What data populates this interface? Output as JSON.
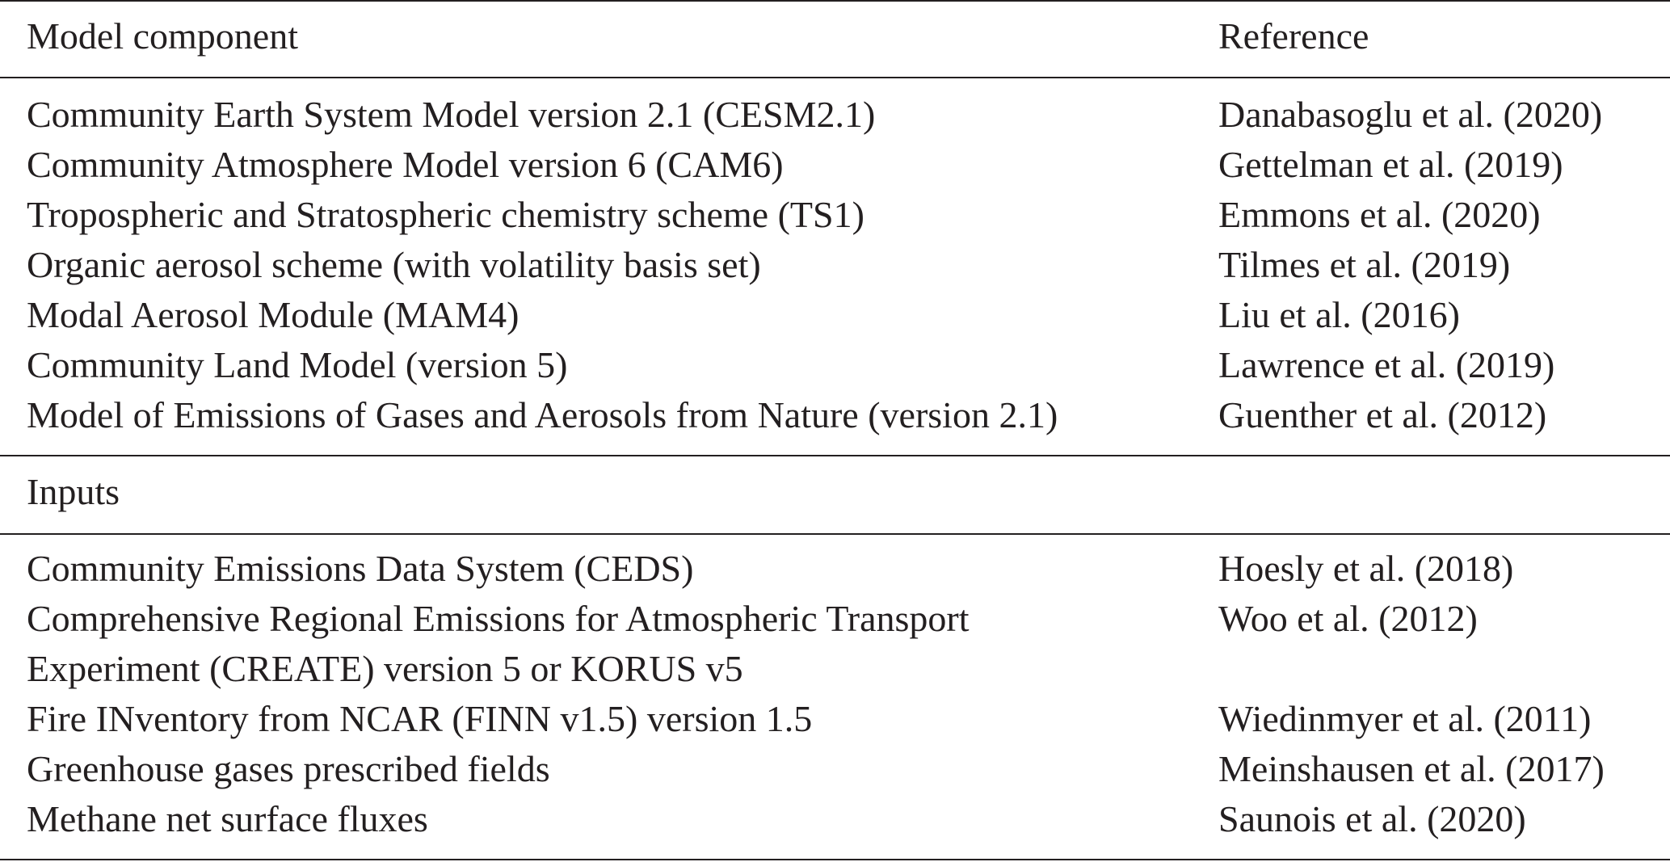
{
  "header": {
    "col1": "Model component",
    "col2": "Reference"
  },
  "model_components": [
    {
      "component": "Community Earth System Model version 2.1 (CESM2.1)",
      "reference": "Danabasoglu et al. (2020)"
    },
    {
      "component": "Community Atmosphere Model version 6 (CAM6)",
      "reference": "Gettelman et al. (2019)"
    },
    {
      "component": "Tropospheric and Stratospheric chemistry scheme (TS1)",
      "reference": "Emmons et al. (2020)"
    },
    {
      "component": "Organic aerosol scheme (with volatility basis set)",
      "reference": "Tilmes et al. (2019)"
    },
    {
      "component": "Modal Aerosol Module (MAM4)",
      "reference": "Liu et al. (2016)"
    },
    {
      "component": "Community Land Model (version 5)",
      "reference": "Lawrence et al. (2019)"
    },
    {
      "component": "Model of Emissions of Gases and Aerosols from Nature (version 2.1)",
      "reference": "Guenther et al. (2012)"
    }
  ],
  "inputs_header": "Inputs",
  "inputs": [
    {
      "component": "Community Emissions Data System (CEDS)",
      "reference": "Hoesly et al. (2018)"
    },
    {
      "component": "Comprehensive Regional Emissions for Atmospheric Transport",
      "reference": "Woo et al. (2012)"
    },
    {
      "component": "Experiment (CREATE) version 5 or KORUS v5",
      "reference": ""
    },
    {
      "component": "Fire INventory from NCAR (FINN v1.5) version 1.5",
      "reference": "Wiedinmyer et al. (2011)"
    },
    {
      "component": "Greenhouse gases prescribed fields",
      "reference": "Meinshausen et al. (2017)"
    },
    {
      "component": "Methane net surface fluxes",
      "reference": "Saunois et al. (2020)"
    }
  ]
}
